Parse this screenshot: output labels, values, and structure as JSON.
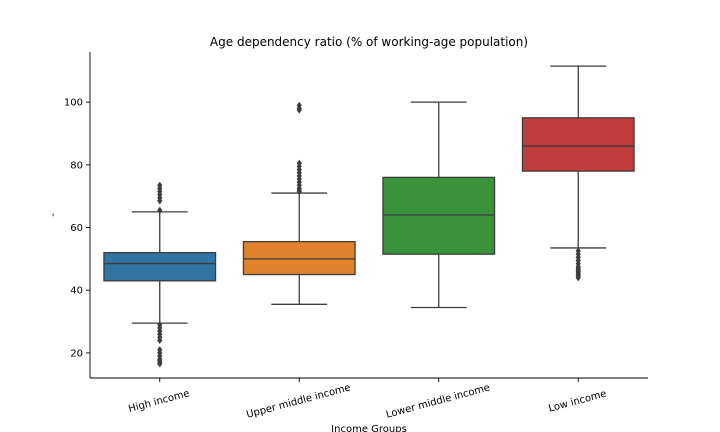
{
  "chart_data": {
    "type": "box",
    "title": "Age dependency ratio (% of working-age population)",
    "xlabel": "Income Groups",
    "ylabel": "-",
    "ylim": [
      12,
      116
    ],
    "yticks": [
      20,
      40,
      60,
      80,
      100
    ],
    "grid": false,
    "categories": [
      "High income",
      "Upper middle income",
      "Lower middle income",
      "Low income"
    ],
    "boxes": [
      {
        "name": "High income",
        "color": "#3274a1",
        "whisker_low": 29.5,
        "q1": 43,
        "median": 48.5,
        "q3": 52,
        "whisker_high": 65,
        "outliers": [
          73.5,
          72.5,
          71.5,
          70.5,
          69.5,
          68.5,
          65.5,
          29,
          28,
          27,
          26,
          25,
          24,
          21,
          20,
          19,
          18,
          17.5,
          17,
          16.5
        ]
      },
      {
        "name": "Upper middle income",
        "color": "#e1812c",
        "whisker_low": 35.5,
        "q1": 45,
        "median": 50,
        "q3": 55.5,
        "whisker_high": 71,
        "outliers": [
          99,
          98,
          97.5,
          80.5,
          79.5,
          78.5,
          77.5,
          76.5,
          75.5,
          74.5,
          73.5,
          72.5,
          72,
          71.5
        ]
      },
      {
        "name": "Lower middle income",
        "color": "#3a923a",
        "whisker_low": 34.5,
        "q1": 51.5,
        "median": 64,
        "q3": 76,
        "whisker_high": 100,
        "outliers": []
      },
      {
        "name": "Low income",
        "color": "#c03d3e",
        "whisker_low": 53.5,
        "q1": 78,
        "median": 86,
        "q3": 95,
        "whisker_high": 111.5,
        "outliers": [
          52.5,
          51.5,
          50.5,
          49.5,
          48.5,
          47.5,
          47,
          46.5,
          46,
          45.5,
          45,
          44.5,
          44
        ]
      }
    ]
  }
}
